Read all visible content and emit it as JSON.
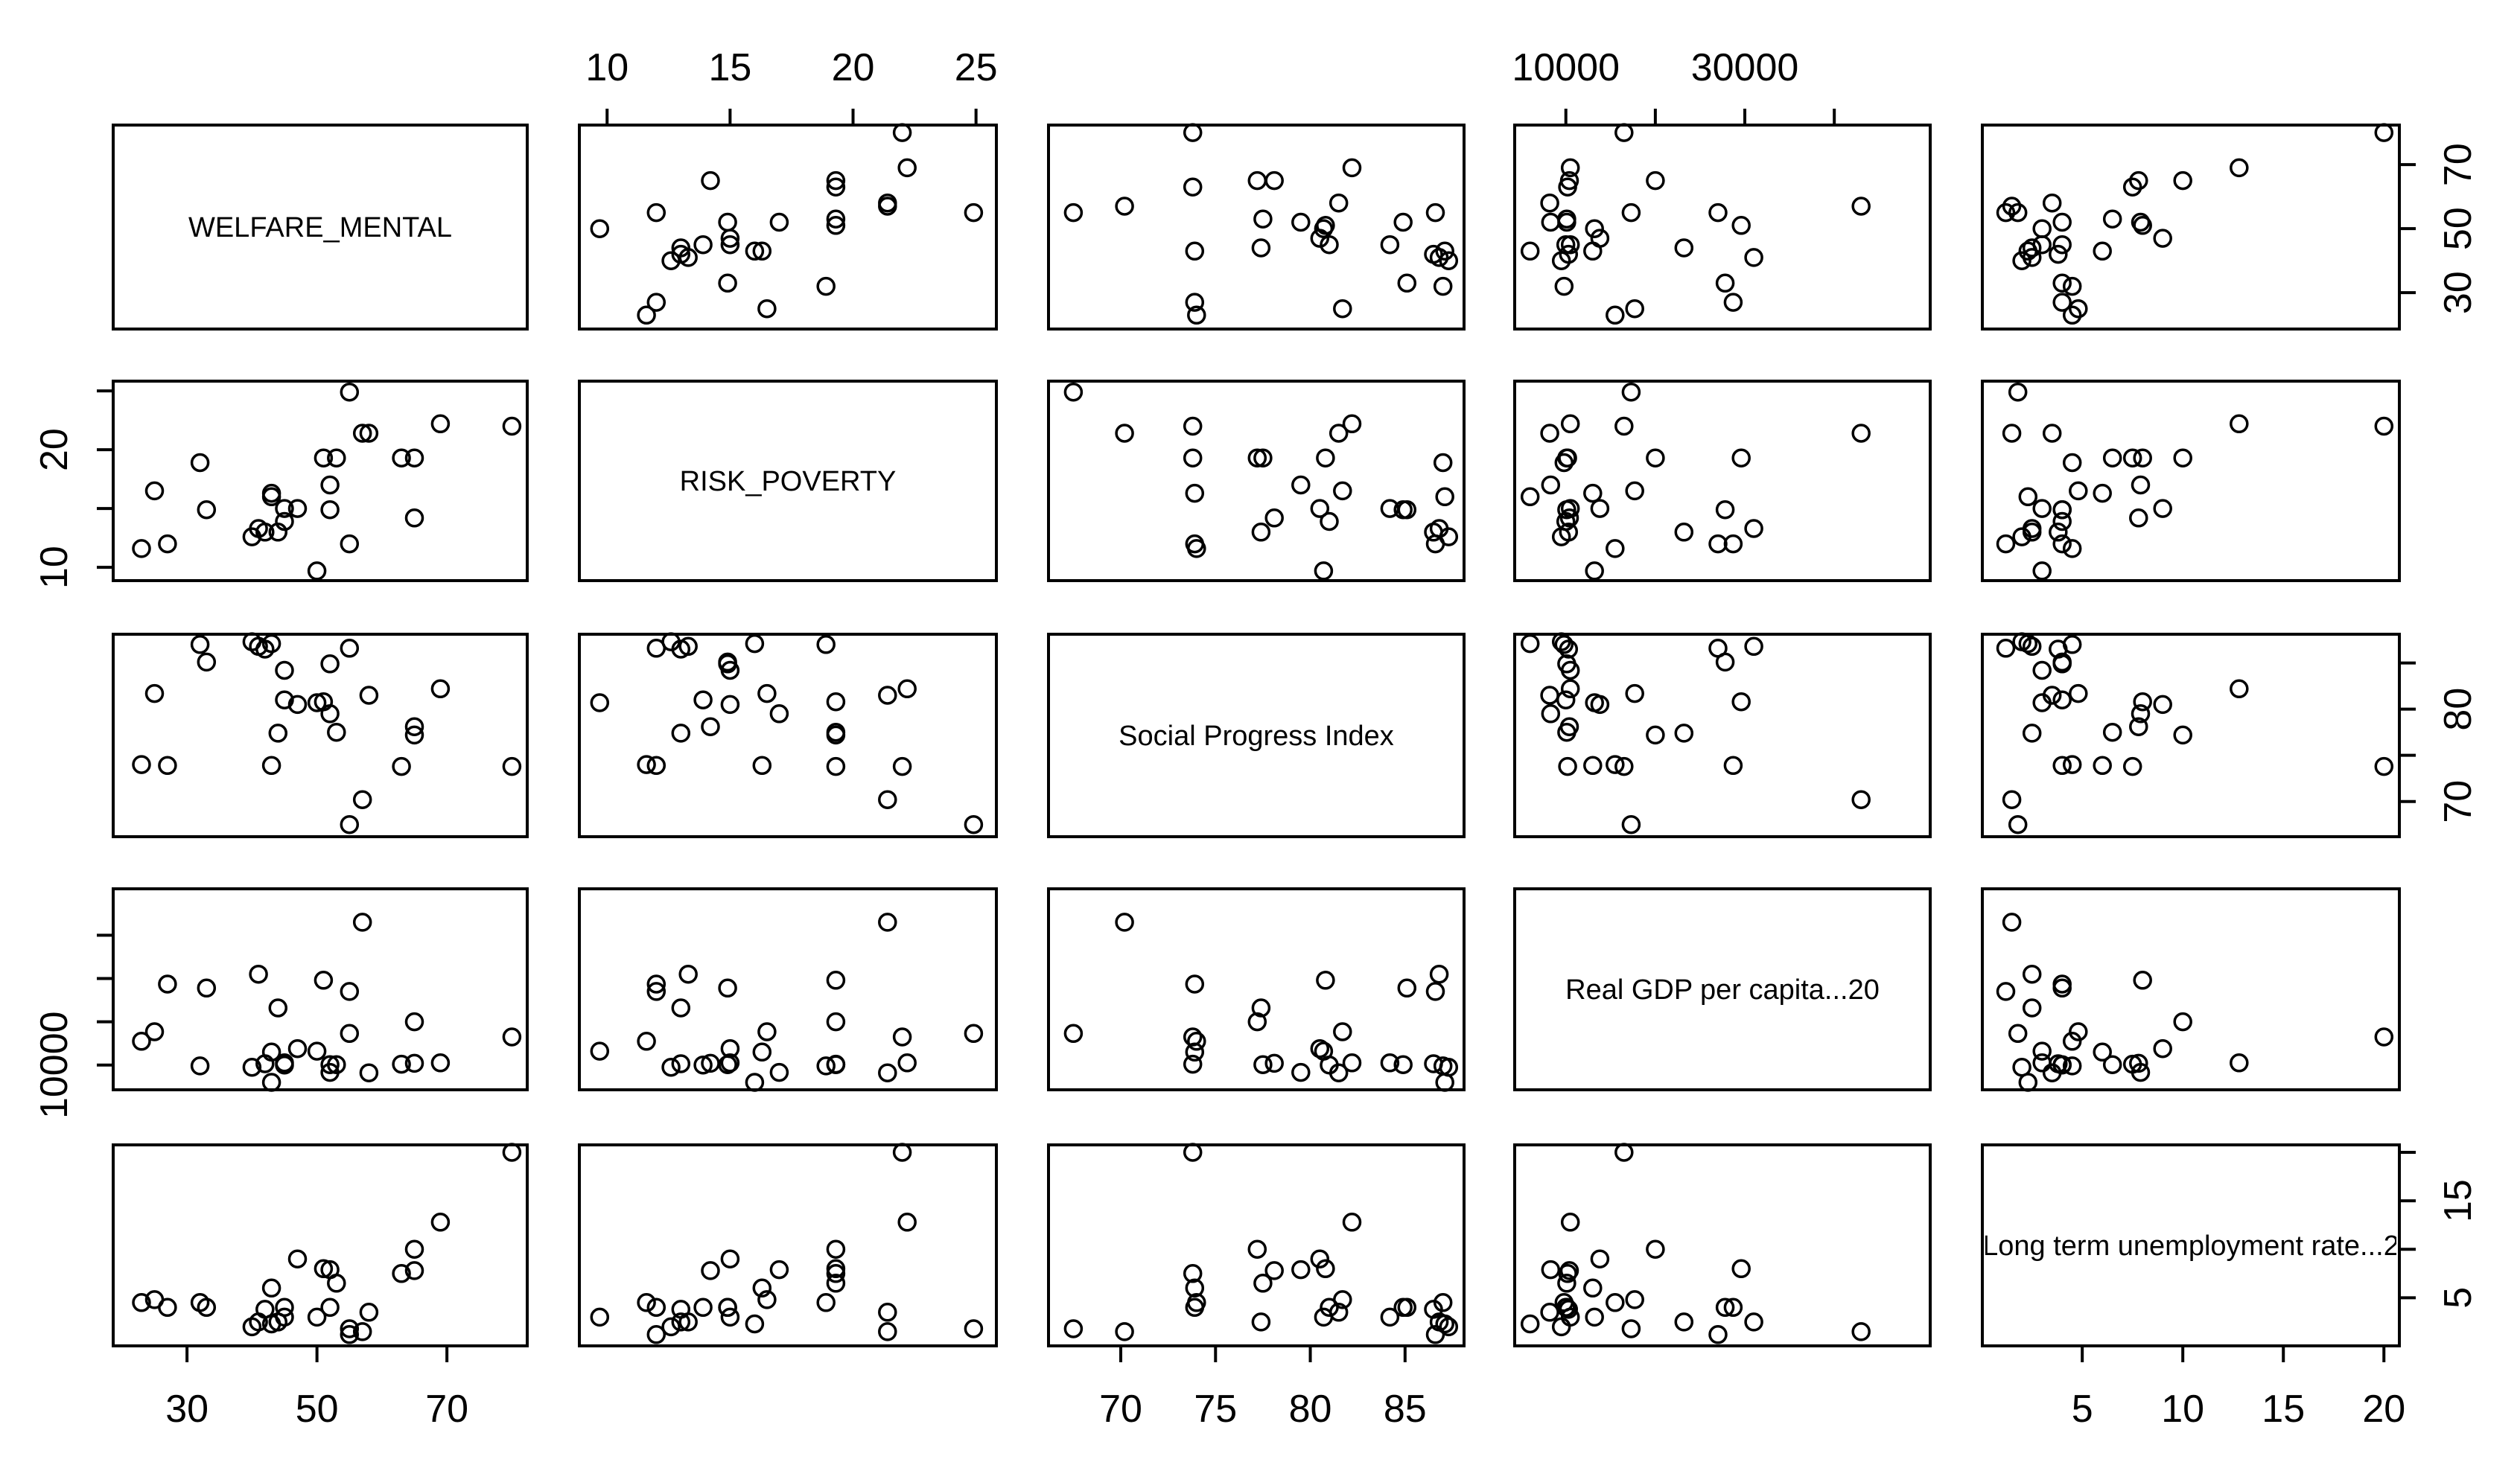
{
  "chart_data": {
    "type": "scatter",
    "title": "",
    "variables": [
      {
        "name": "WELFARE_MENTAL",
        "range": [
          21,
          80
        ],
        "ticks": [
          30,
          50,
          70
        ],
        "values": [
          80,
          69,
          63,
          65,
          65,
          51,
          47,
          43,
          42,
          52,
          52,
          32,
          25,
          33,
          58,
          45,
          43,
          40,
          53,
          41,
          55,
          57,
          45,
          55,
          50,
          23,
          27,
          44
        ]
      },
      {
        "name": "RISK_POVERTY",
        "range": [
          9.5,
          25.2
        ],
        "ticks": [
          10,
          15,
          20,
          25
        ],
        "values": [
          22.0,
          22.2,
          19.3,
          14.2,
          19.3,
          19.3,
          15.0,
          16.3,
          13.0,
          17.0,
          14.9,
          18.9,
          16.5,
          14.9,
          21.4,
          15.0,
          16.0,
          12.6,
          19.3,
          13.3,
          12.0,
          21.4,
          13.9,
          24.9,
          9.7,
          11.6,
          12.0,
          13.0
        ]
      },
      {
        "name": "Social Progress Index",
        "range": [
          67,
          87.3
        ],
        "ticks": [
          70,
          75,
          80,
          85
        ],
        "values": [
          73.8,
          82.2,
          73.8,
          78.1,
          77.2,
          80.8,
          80.5,
          73.9,
          86.5,
          79.5,
          84.9,
          87.0,
          81.7,
          85.1,
          81.5,
          84.2,
          87.1,
          87.3,
          77.5,
          86.8,
          86.6,
          70.2,
          81.0,
          67.5,
          80.7,
          74.0,
          73.9,
          77.4
        ]
      },
      {
        "name": "Real GDP per capita...20",
        "range": [
          6000,
          49000
        ],
        "ticks": [
          10000,
          20000,
          30000,
          40000
        ],
        "values": [
          16500,
          10500,
          10200,
          10400,
          20000,
          29600,
          13800,
          13000,
          10300,
          8300,
          10100,
          9800,
          17700,
          27800,
          8200,
          10500,
          6000,
          9500,
          10100,
          31000,
          27000,
          43000,
          10000,
          17300,
          13200,
          15500,
          28700,
          23200
        ]
      },
      {
        "name": "Long term unemployment rate...2",
        "range": [
          0.8,
          20
        ],
        "ticks": [
          5,
          10,
          15,
          20
        ],
        "values": [
          20.0,
          12.8,
          7.5,
          7.8,
          10.0,
          8.0,
          9.0,
          6.0,
          3.8,
          7.9,
          4.0,
          4.5,
          4.8,
          4.0,
          3.5,
          3.0,
          2.3,
          2.0,
          6.5,
          2.5,
          1.2,
          1.5,
          4.0,
          1.8,
          3.0,
          4.5,
          4.0,
          2.5
        ]
      }
    ]
  }
}
